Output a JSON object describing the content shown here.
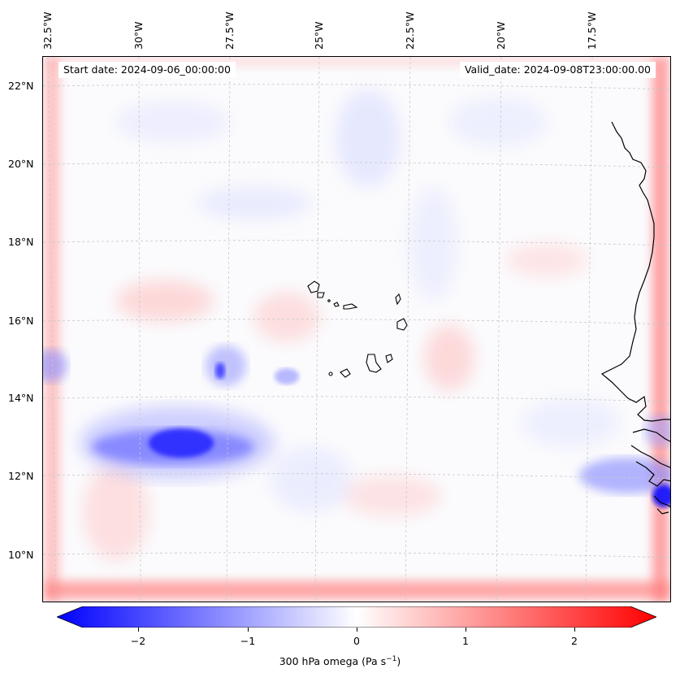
{
  "map": {
    "start_label": "Start date: 2024-09-06_00:00:00",
    "valid_label": "Valid_date: 2024-09-08T23:00:00.00",
    "lat_labels": [
      "22°N",
      "20°N",
      "18°N",
      "16°N",
      "14°N",
      "12°N",
      "10°N"
    ],
    "lon_labels": [
      "32.5°W",
      "30°W",
      "27.5°W",
      "25°W",
      "22.5°W",
      "20°W",
      "17.5°W"
    ],
    "colors": {
      "negative": "#0000ff",
      "positive": "#ff0000",
      "neutral": "#ffffff",
      "coastline": "#000000",
      "grid": "#c8c8c8"
    }
  },
  "colorbar": {
    "ticks": [
      "−2",
      "−1",
      "0",
      "1",
      "2"
    ],
    "tick_values": [
      -2,
      -1,
      0,
      1,
      2
    ],
    "range": [
      -2.5,
      2.5
    ],
    "label_main": "300 hPa omega (Pa s",
    "label_sup": "−1",
    "label_end": ")"
  }
}
